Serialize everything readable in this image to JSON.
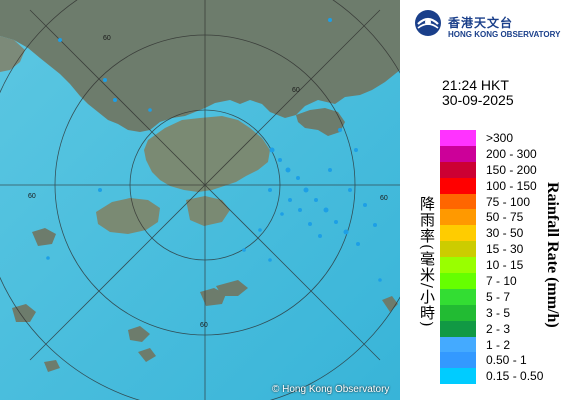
{
  "map": {
    "copyright": "© Hong Kong Observatory",
    "range_labels": [
      "60",
      "60",
      "60",
      "60",
      "60"
    ],
    "colors": {
      "sea": "#4ec3e0",
      "land": "#6f7f6f",
      "radar_echo": "#1aa0e8"
    }
  },
  "branding": {
    "name_cn": "香港天文台",
    "name_en": "HONG KONG OBSERVATORY"
  },
  "timestamp": {
    "time": "21:24 HKT",
    "date": "30-09-2025"
  },
  "legend": {
    "title_cn": "降雨率(毫米/小時)",
    "title_en": "Rainfall Rate (mm/h)",
    "bins": [
      {
        "label": ">300",
        "color": "#ff33ff"
      },
      {
        "label": "200 - 300",
        "color": "#cc0099"
      },
      {
        "label": "150 - 200",
        "color": "#cc0033"
      },
      {
        "label": "100 - 150",
        "color": "#ff0000"
      },
      {
        "label": "75 - 100",
        "color": "#ff6600"
      },
      {
        "label": "50 - 75",
        "color": "#ff9900"
      },
      {
        "label": "30 - 50",
        "color": "#ffcc00"
      },
      {
        "label": "15 - 30",
        "color": "#cccc00"
      },
      {
        "label": "10 - 15",
        "color": "#99ff00"
      },
      {
        "label": "7 - 10",
        "color": "#66ff00"
      },
      {
        "label": "5 - 7",
        "color": "#33dd33"
      },
      {
        "label": "3 - 5",
        "color": "#22bb33"
      },
      {
        "label": "2 - 3",
        "color": "#119944"
      },
      {
        "label": "1 - 2",
        "color": "#44aaff"
      },
      {
        "label": "0.50 - 1",
        "color": "#3399ff"
      },
      {
        "label": "0.15 - 0.50",
        "color": "#00ccff"
      }
    ]
  }
}
